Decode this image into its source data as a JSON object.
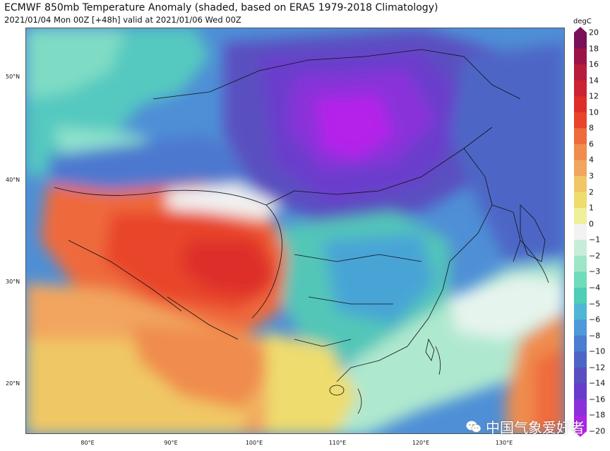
{
  "title": "ECMWF 850mb Temperature Anomaly (shaded, based on ERA5 1979-2018 Climatology)",
  "subtitle": "2021/01/04 Mon 00Z [+48h] valid at 2021/01/06 Wed 00Z",
  "colorbar": {
    "unit": "degC",
    "levels": [
      "20",
      "18",
      "16",
      "14",
      "12",
      "10",
      "8",
      "6",
      "4",
      "3",
      "2",
      "1",
      "0",
      "−1",
      "−2",
      "−3",
      "−4",
      "−5",
      "−6",
      "−8",
      "−10",
      "−12",
      "−14",
      "−16",
      "−18",
      "−20"
    ],
    "colors": [
      "#7a0f5a",
      "#9c1446",
      "#b71c3a",
      "#cc2434",
      "#dd2f2a",
      "#e8452a",
      "#ee6b3c",
      "#f08c4e",
      "#f2a55e",
      "#f0c765",
      "#eedc6e",
      "#f0ef9a",
      "#f2f2f2",
      "#c9ecd9",
      "#9fe6c7",
      "#6fdcbc",
      "#4ecdb7",
      "#4fb6d6",
      "#4e99d9",
      "#4b7ed1",
      "#4d66c6",
      "#5a4fc0",
      "#6a3ccc",
      "#8a31da",
      "#a826e6",
      "#c41bf0"
    ]
  },
  "axes": {
    "lat_labels": [
      "50°N",
      "40°N",
      "30°N",
      "20°N"
    ],
    "lon_labels": [
      "80°E",
      "90°E",
      "100°E",
      "110°E",
      "120°E",
      "130°E"
    ]
  },
  "watermark": {
    "text": "中国气象爱好者",
    "icon": "wechat-icon"
  }
}
